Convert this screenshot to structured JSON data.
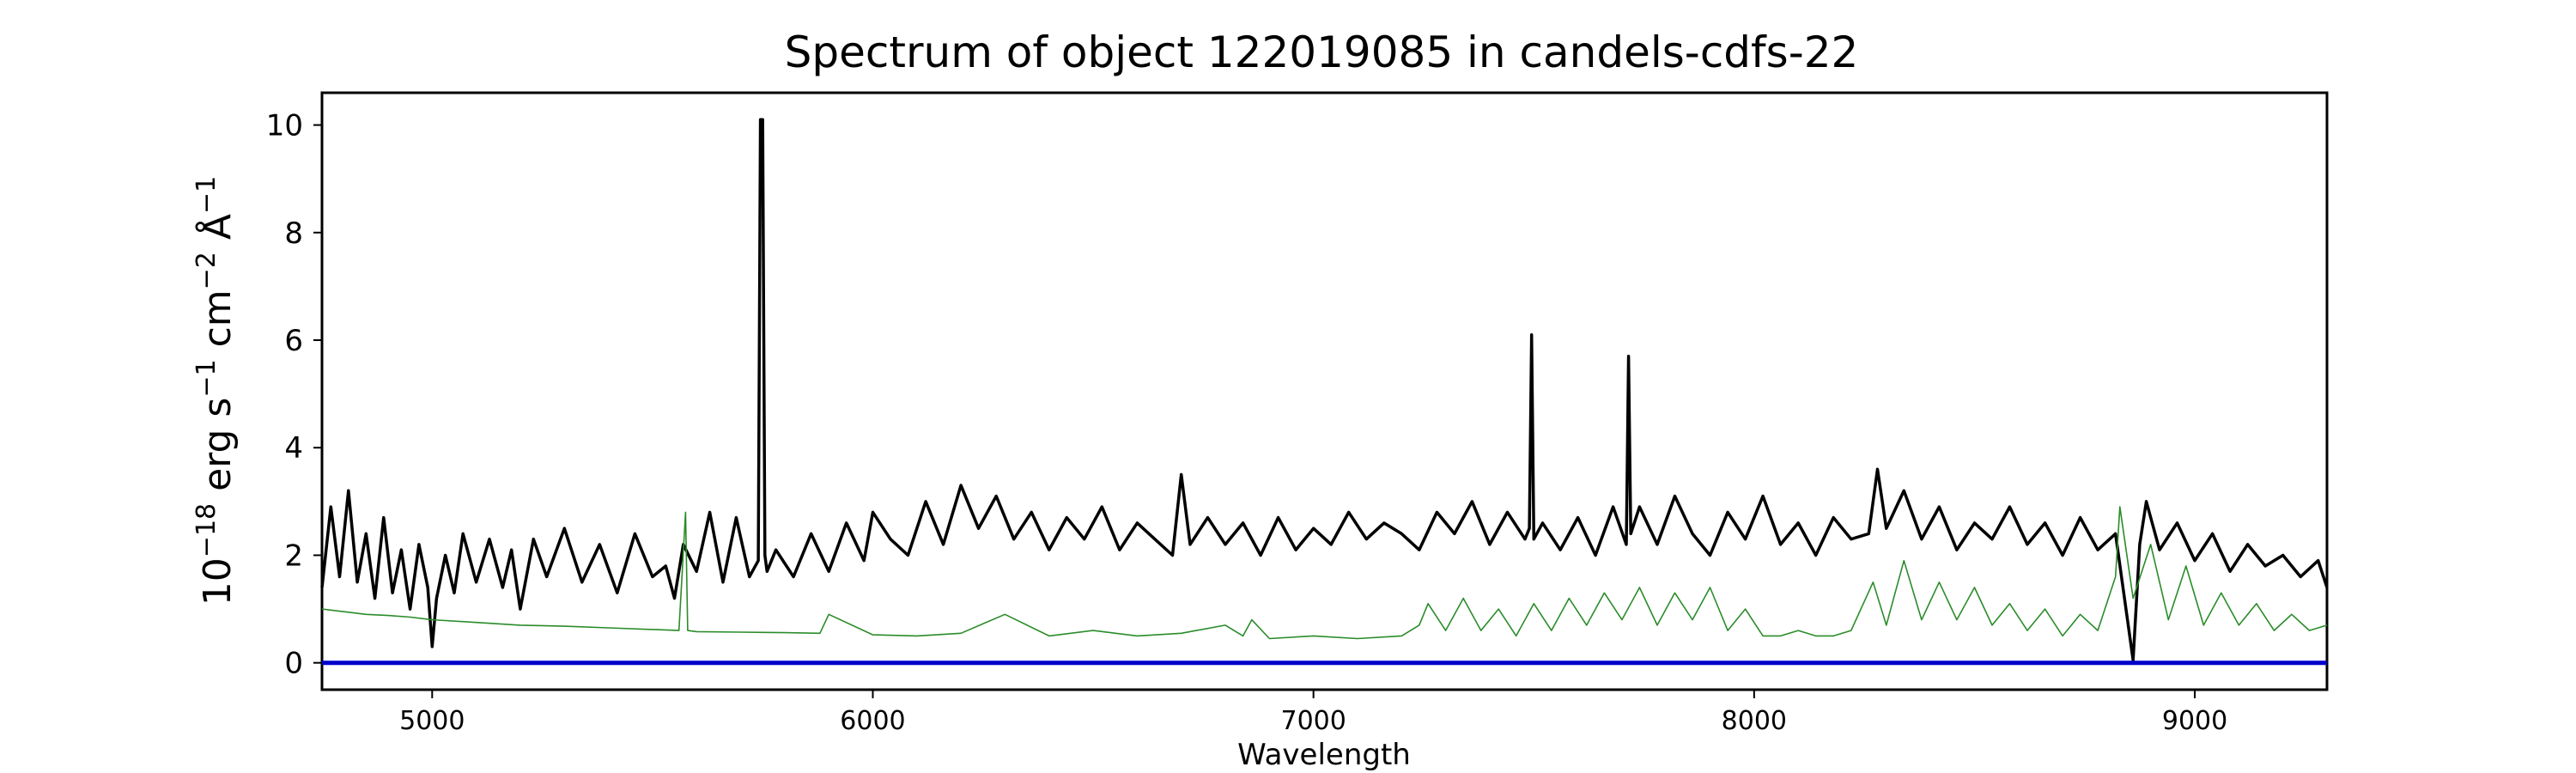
{
  "chart_data": {
    "type": "line",
    "title": "Spectrum of object 122019085 in candels-cdfs-22",
    "xlabel": "Wavelength",
    "ylabel": "10^-18 erg s^-1 cm^-2 Å^-1",
    "ylabel_parts": {
      "base": "10",
      "exp1": "−18",
      "unit1": " erg s",
      "exp2": "−1",
      "unit2": " cm",
      "exp3": "−2",
      "unit3": " Å",
      "exp4": "−1"
    },
    "xlim": [
      4750,
      9300
    ],
    "ylim": [
      -0.5,
      10.6
    ],
    "xticks": [
      5000,
      6000,
      7000,
      8000,
      9000
    ],
    "yticks": [
      0,
      2,
      4,
      6,
      8,
      10
    ],
    "grid": false,
    "series": [
      {
        "role": "flux",
        "color": "#000000",
        "x": [
          4750,
          4770,
          4790,
          4810,
          4830,
          4850,
          4870,
          4890,
          4910,
          4930,
          4950,
          4970,
          4990,
          5000,
          5010,
          5030,
          5050,
          5070,
          5100,
          5130,
          5160,
          5180,
          5200,
          5230,
          5260,
          5300,
          5340,
          5380,
          5420,
          5460,
          5500,
          5530,
          5550,
          5570,
          5600,
          5630,
          5660,
          5690,
          5720,
          5740,
          5745,
          5750,
          5755,
          5760,
          5780,
          5820,
          5860,
          5900,
          5940,
          5980,
          6000,
          6040,
          6080,
          6120,
          6160,
          6200,
          6240,
          6280,
          6320,
          6360,
          6400,
          6440,
          6480,
          6520,
          6560,
          6600,
          6640,
          6680,
          6700,
          6720,
          6760,
          6800,
          6840,
          6880,
          6920,
          6960,
          7000,
          7040,
          7080,
          7120,
          7160,
          7200,
          7240,
          7280,
          7320,
          7360,
          7400,
          7440,
          7480,
          7490,
          7495,
          7500,
          7520,
          7560,
          7600,
          7640,
          7680,
          7710,
          7715,
          7720,
          7740,
          7780,
          7820,
          7860,
          7900,
          7940,
          7980,
          8020,
          8060,
          8100,
          8140,
          8180,
          8220,
          8260,
          8280,
          8300,
          8340,
          8380,
          8420,
          8460,
          8500,
          8540,
          8580,
          8620,
          8660,
          8700,
          8740,
          8780,
          8820,
          8860,
          8875,
          8890,
          8920,
          8960,
          9000,
          9040,
          9080,
          9120,
          9160,
          9200,
          9240,
          9280,
          9300
        ],
        "y": [
          1.4,
          2.9,
          1.6,
          3.2,
          1.5,
          2.4,
          1.2,
          2.7,
          1.3,
          2.1,
          1.0,
          2.2,
          1.4,
          0.3,
          1.2,
          2.0,
          1.3,
          2.4,
          1.5,
          2.3,
          1.4,
          2.1,
          1.0,
          2.3,
          1.6,
          2.5,
          1.5,
          2.2,
          1.3,
          2.4,
          1.6,
          1.8,
          1.2,
          2.2,
          1.7,
          2.8,
          1.5,
          2.7,
          1.6,
          1.9,
          10.1,
          10.1,
          2.0,
          1.7,
          2.1,
          1.6,
          2.4,
          1.7,
          2.6,
          1.9,
          2.8,
          2.3,
          2.0,
          3.0,
          2.2,
          3.3,
          2.5,
          3.1,
          2.3,
          2.8,
          2.1,
          2.7,
          2.3,
          2.9,
          2.1,
          2.6,
          2.3,
          2.0,
          3.5,
          2.2,
          2.7,
          2.2,
          2.6,
          2.0,
          2.7,
          2.1,
          2.5,
          2.2,
          2.8,
          2.3,
          2.6,
          2.4,
          2.1,
          2.8,
          2.4,
          3.0,
          2.2,
          2.8,
          2.3,
          2.5,
          6.1,
          2.3,
          2.6,
          2.1,
          2.7,
          2.0,
          2.9,
          2.2,
          5.7,
          2.4,
          2.9,
          2.2,
          3.1,
          2.4,
          2.0,
          2.8,
          2.3,
          3.1,
          2.2,
          2.6,
          2.0,
          2.7,
          2.3,
          2.4,
          3.6,
          2.5,
          3.2,
          2.3,
          2.9,
          2.1,
          2.6,
          2.3,
          2.9,
          2.2,
          2.6,
          2.0,
          2.7,
          2.1,
          2.4,
          0.05,
          2.2,
          3.0,
          2.1,
          2.6,
          1.9,
          2.4,
          1.7,
          2.2,
          1.8,
          2.0,
          1.6,
          1.9,
          1.4
        ]
      },
      {
        "role": "error",
        "color": "#2a8c2a",
        "x": [
          4750,
          4800,
          4850,
          4900,
          4950,
          5000,
          5100,
          5200,
          5300,
          5400,
          5500,
          5560,
          5575,
          5580,
          5600,
          5700,
          5800,
          5880,
          5900,
          6000,
          6100,
          6200,
          6300,
          6400,
          6500,
          6600,
          6700,
          6800,
          6840,
          6860,
          6900,
          7000,
          7100,
          7200,
          7240,
          7260,
          7300,
          7340,
          7380,
          7420,
          7460,
          7500,
          7540,
          7580,
          7620,
          7660,
          7700,
          7740,
          7780,
          7820,
          7860,
          7900,
          7940,
          7980,
          8020,
          8060,
          8100,
          8140,
          8180,
          8220,
          8270,
          8300,
          8340,
          8380,
          8420,
          8460,
          8500,
          8540,
          8580,
          8620,
          8660,
          8700,
          8740,
          8780,
          8820,
          8830,
          8860,
          8900,
          8940,
          8980,
          9020,
          9060,
          9100,
          9140,
          9180,
          9220,
          9260,
          9300
        ],
        "y": [
          1.0,
          0.95,
          0.9,
          0.88,
          0.85,
          0.8,
          0.75,
          0.7,
          0.68,
          0.65,
          0.62,
          0.6,
          2.8,
          0.6,
          0.58,
          0.57,
          0.56,
          0.55,
          0.9,
          0.52,
          0.5,
          0.55,
          0.9,
          0.5,
          0.6,
          0.5,
          0.55,
          0.7,
          0.5,
          0.8,
          0.45,
          0.5,
          0.45,
          0.5,
          0.7,
          1.1,
          0.6,
          1.2,
          0.6,
          1.0,
          0.5,
          1.1,
          0.6,
          1.2,
          0.7,
          1.3,
          0.8,
          1.4,
          0.7,
          1.3,
          0.8,
          1.4,
          0.6,
          1.0,
          0.5,
          0.5,
          0.6,
          0.5,
          0.5,
          0.6,
          1.5,
          0.7,
          1.9,
          0.8,
          1.5,
          0.8,
          1.4,
          0.7,
          1.1,
          0.6,
          1.0,
          0.5,
          0.9,
          0.6,
          1.6,
          2.9,
          1.2,
          2.2,
          0.8,
          1.8,
          0.7,
          1.3,
          0.7,
          1.1,
          0.6,
          0.9,
          0.6,
          0.7
        ]
      },
      {
        "role": "zero",
        "color": "#0000cc",
        "x": [
          4750,
          9300
        ],
        "y": [
          0,
          0
        ]
      }
    ]
  }
}
